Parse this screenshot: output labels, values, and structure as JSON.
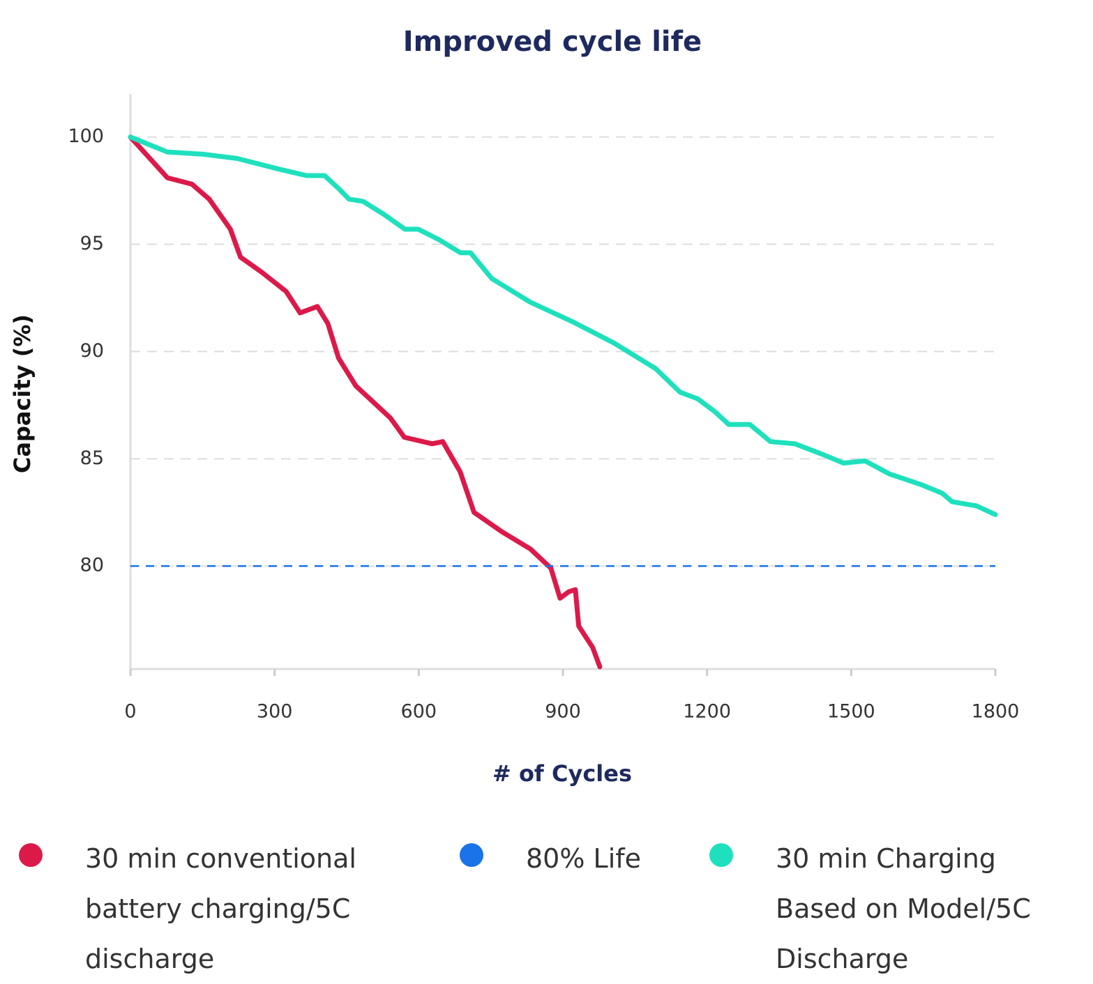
{
  "chart_data": {
    "type": "line",
    "title": "Improved cycle life",
    "x_label": "# of Cycles",
    "y_label": "Capacity (%)",
    "xlim": [
      0,
      1800
    ],
    "xticks": [
      0,
      300,
      600,
      900,
      1200,
      1500,
      1800
    ],
    "ylim": [
      75.2,
      102
    ],
    "yticks": [
      80,
      85,
      90,
      95,
      100
    ],
    "grid": true,
    "series": [
      {
        "name": "30 min conventional battery charging/5C discharge",
        "color": "#dc1a4a",
        "x": [
          0,
          77,
          128,
          164,
          208,
          229,
          273,
          324,
          353,
          389,
          411,
          433,
          469,
          541,
          570,
          628,
          650,
          686,
          715,
          773,
          832,
          875,
          894,
          912,
          926,
          933,
          962,
          977
        ],
        "values": [
          100,
          98.1,
          97.8,
          97.1,
          95.7,
          94.4,
          93.7,
          92.8,
          91.8,
          92.1,
          91.3,
          89.7,
          88.4,
          86.9,
          86.0,
          85.7,
          85.8,
          84.4,
          82.5,
          81.6,
          80.8,
          79.9,
          78.5,
          78.8,
          78.9,
          77.2,
          76.2,
          75.3
        ]
      },
      {
        "name": "80% Life",
        "color": "#1a73e8",
        "dashed": true,
        "x": [
          0,
          1800
        ],
        "values": [
          80,
          80
        ]
      },
      {
        "name": "30 min Charging Based on Model/5C Discharge",
        "color": "#1fe0bd",
        "x": [
          0,
          77,
          150,
          222,
          309,
          367,
          404,
          433,
          455,
          484,
          527,
          571,
          599,
          643,
          687,
          708,
          752,
          832,
          919,
          1006,
          1093,
          1144,
          1180,
          1216,
          1245,
          1289,
          1332,
          1383,
          1441,
          1484,
          1529,
          1579,
          1645,
          1689,
          1710,
          1761,
          1800
        ],
        "values": [
          100,
          99.3,
          99.2,
          99.0,
          98.5,
          98.2,
          98.2,
          97.6,
          97.1,
          97.0,
          96.4,
          95.7,
          95.7,
          95.2,
          94.6,
          94.6,
          93.4,
          92.3,
          91.4,
          90.4,
          89.2,
          88.1,
          87.8,
          87.2,
          86.6,
          86.6,
          85.8,
          85.7,
          85.2,
          84.8,
          84.9,
          84.3,
          83.8,
          83.4,
          83.0,
          82.8,
          82.4
        ]
      }
    ]
  }
}
